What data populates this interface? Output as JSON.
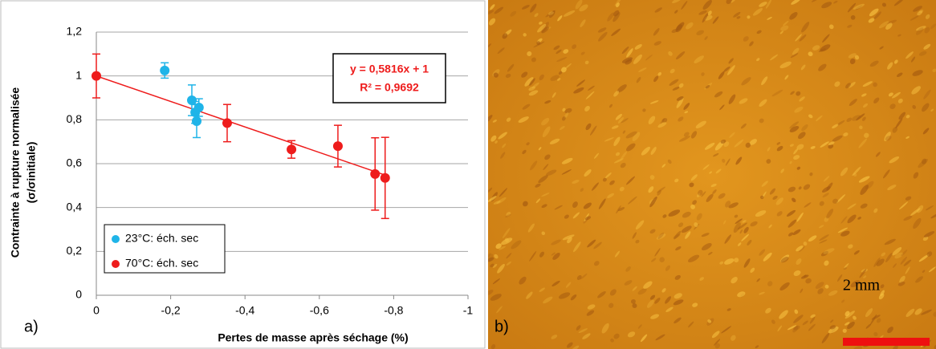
{
  "chart_data": {
    "type": "scatter",
    "y_label": "Contrainte à rupture normalisée",
    "y_label_2": "(σ/σinitiale)",
    "x_label": "Pertes de masse après séchage (%)",
    "xlim": [
      0,
      -1
    ],
    "xticks": [
      0,
      {
        "value": -0.2,
        "label": "-0,2"
      },
      {
        "value": -0.4,
        "label": "-0,4"
      },
      {
        "value": -0.6,
        "label": "-0,6"
      },
      {
        "value": -0.8,
        "label": "-0,8"
      },
      -1
    ],
    "ylim": [
      0,
      1.2
    ],
    "yticks": [
      0,
      {
        "value": 0.2,
        "label": "0,2"
      },
      {
        "value": 0.4,
        "label": "0,4"
      },
      {
        "value": 0.6,
        "label": "0,6"
      },
      {
        "value": 0.8,
        "label": "0,8"
      },
      1,
      {
        "value": 1.2,
        "label": "1,2"
      }
    ],
    "grid": true,
    "series": [
      {
        "name": "23°C: éch. sec",
        "color": "#1fb4e8",
        "x": [
          -0.184,
          -0.257,
          -0.266,
          -0.27,
          -0.276
        ],
        "values": [
          1.025,
          0.889,
          0.834,
          0.794,
          0.856
        ],
        "errors": [
          0.035,
          0.07,
          0.05,
          0.075,
          0.04
        ]
      },
      {
        "name": "70°C: éch. sec",
        "color": "#ee1c1c",
        "x": [
          0,
          -0.352,
          -0.525,
          -0.65,
          -0.75,
          -0.777
        ],
        "values": [
          1,
          0.785,
          0.665,
          0.68,
          0.553,
          0.535
        ],
        "errors": [
          0.1,
          0.085,
          0.04,
          0.095,
          0.165,
          0.185
        ]
      }
    ],
    "annotations": {
      "equation": "y = 0,5816x + 1",
      "r2": "R² = 0,9692",
      "panel_a": "a)",
      "panel_b": "b)",
      "scale": "2 mm"
    }
  }
}
